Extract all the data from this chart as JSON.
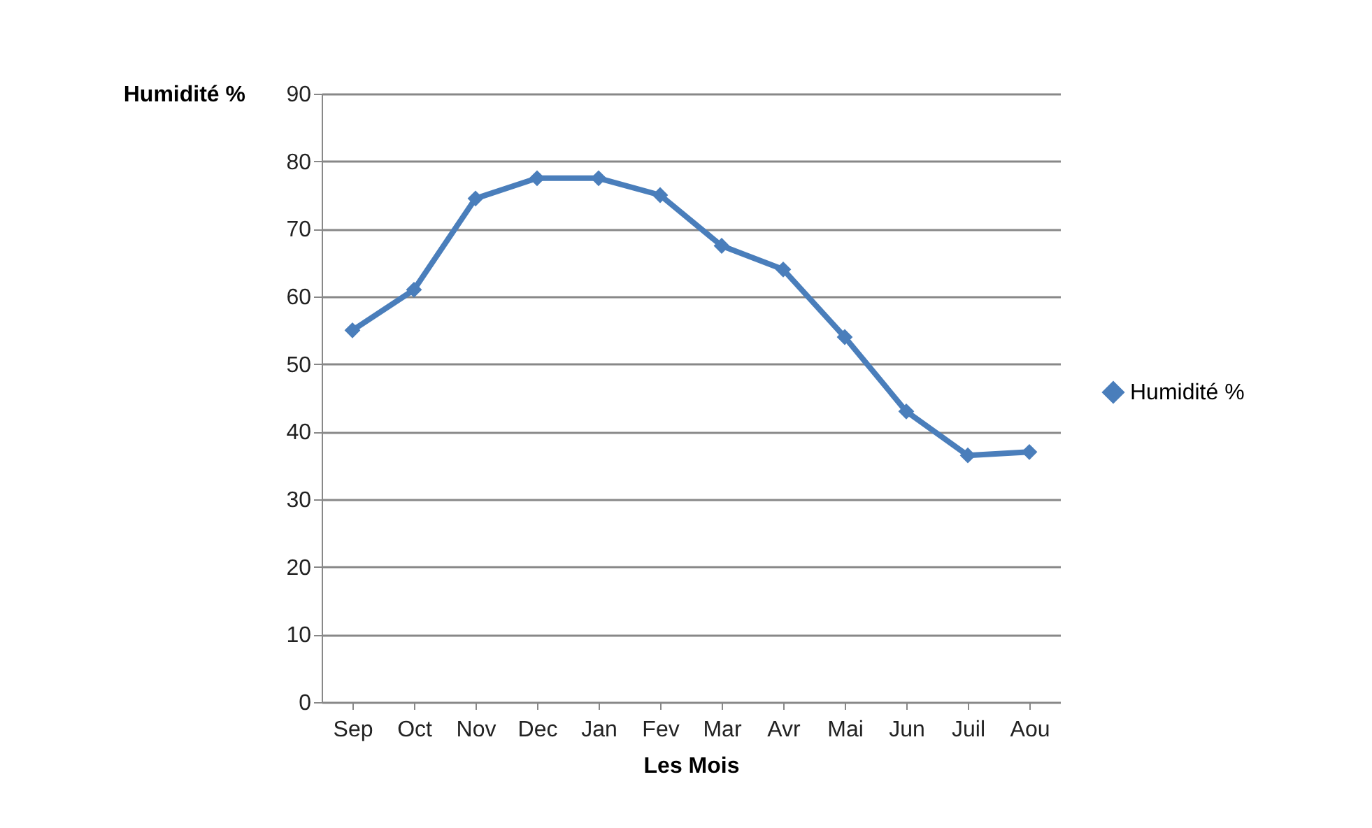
{
  "chart_data": {
    "type": "line",
    "xlabel": "Les Mois",
    "ylabel": "Humidité %",
    "categories": [
      "Sep",
      "Oct",
      "Nov",
      "Dec",
      "Jan",
      "Fev",
      "Mar",
      "Avr",
      "Mai",
      "Jun",
      "Juil",
      "Aou"
    ],
    "series": [
      {
        "name": "Humidité %",
        "color": "#4a7ebb",
        "values": [
          55,
          61,
          74.5,
          77.5,
          77.5,
          75,
          67.5,
          64,
          54,
          43,
          36.5,
          37
        ]
      }
    ],
    "ylim": [
      0,
      90
    ],
    "yticks": [
      0,
      10,
      20,
      30,
      40,
      50,
      60,
      70,
      80,
      90
    ],
    "grid": "y",
    "legend": "right",
    "marker": "diamond",
    "line_style": "solid"
  }
}
